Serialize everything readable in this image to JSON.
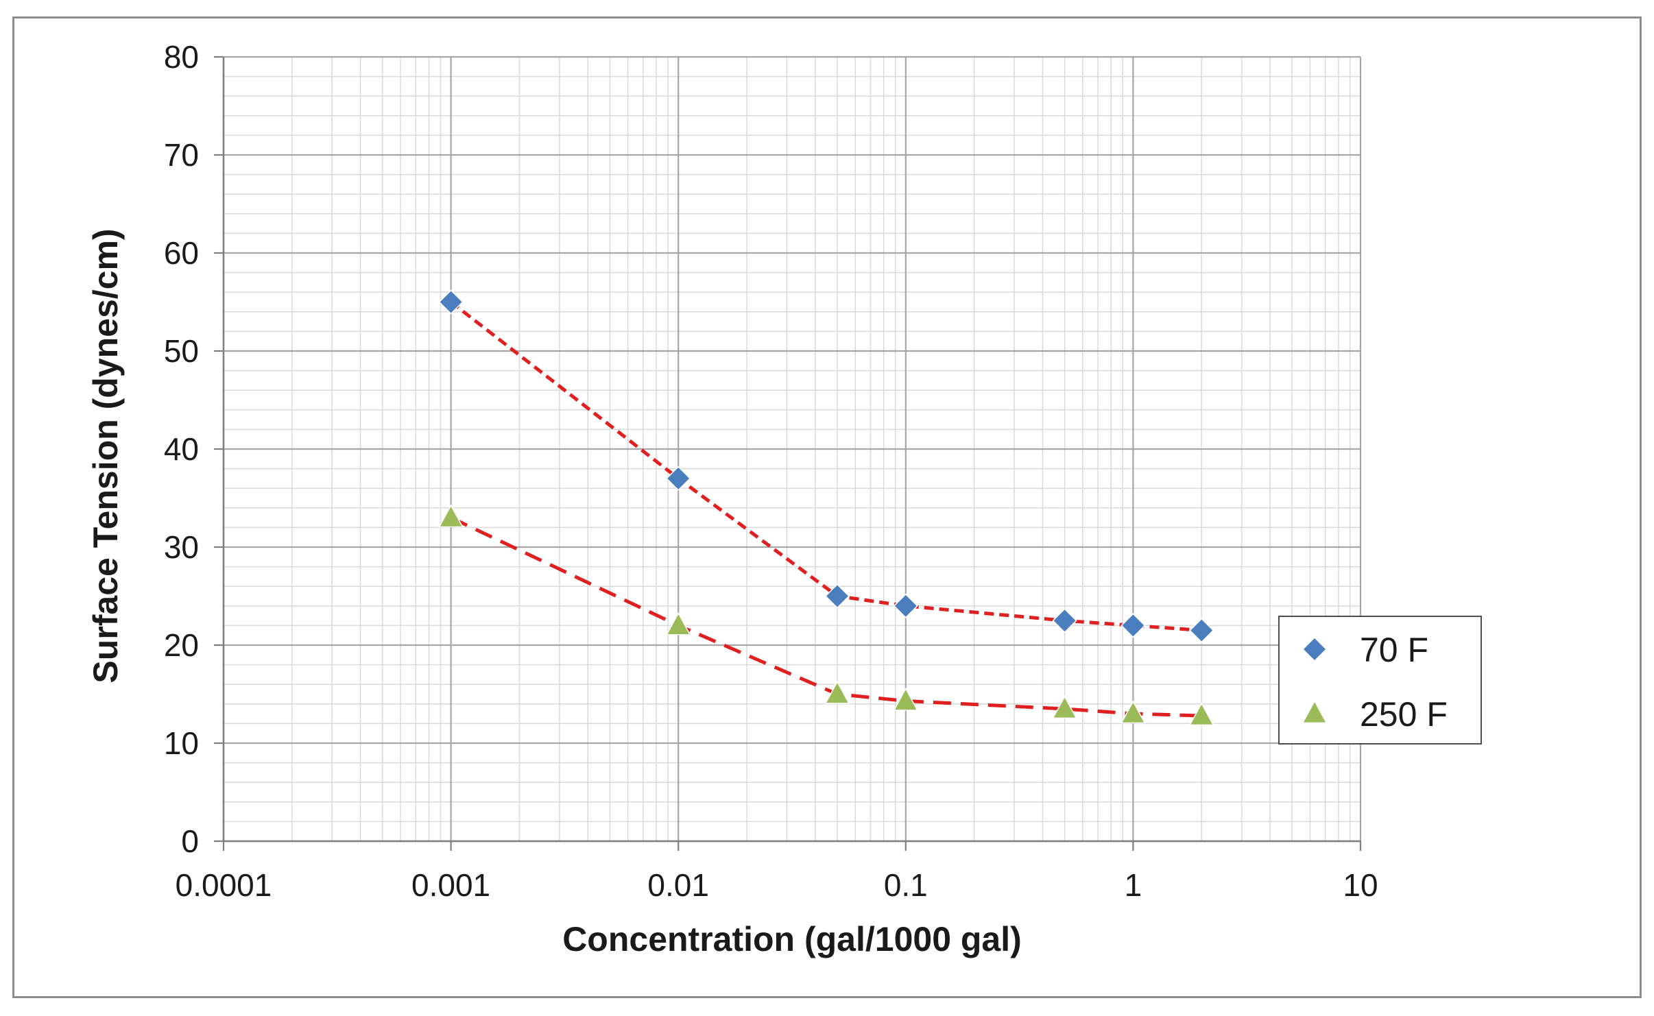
{
  "chart_data": {
    "type": "scatter",
    "title": "",
    "xlabel": "Concentration (gal/1000 gal)",
    "ylabel": "Surface Tension (dynes/cm)",
    "x_scale": "log",
    "xlim": [
      0.0001,
      10
    ],
    "ylim": [
      0,
      80
    ],
    "x_ticks": [
      0.0001,
      0.001,
      0.01,
      0.1,
      1,
      10
    ],
    "x_tick_labels": [
      "0.0001",
      "0.001",
      "0.01",
      "0.1",
      "1",
      "10"
    ],
    "y_ticks": [
      0,
      10,
      20,
      30,
      40,
      50,
      60,
      70,
      80
    ],
    "y_tick_labels": [
      "0",
      "10",
      "20",
      "30",
      "40",
      "50",
      "60",
      "70",
      "80"
    ],
    "grid": true,
    "legend_position": "right",
    "series": [
      {
        "name": "70 F",
        "marker": "diamond",
        "color": "#4a7ebf",
        "trendline_color": "#e02020",
        "x": [
          0.001,
          0.01,
          0.05,
          0.1,
          0.5,
          1,
          2
        ],
        "values": [
          55,
          37,
          25,
          24,
          22.5,
          22,
          21.5
        ]
      },
      {
        "name": "250 F",
        "marker": "triangle",
        "color": "#9bbb59",
        "trendline_color": "#e02020",
        "x": [
          0.001,
          0.01,
          0.05,
          0.1,
          0.5,
          1,
          2
        ],
        "values": [
          33,
          22,
          15,
          14.3,
          13.5,
          13,
          12.8
        ]
      }
    ]
  }
}
